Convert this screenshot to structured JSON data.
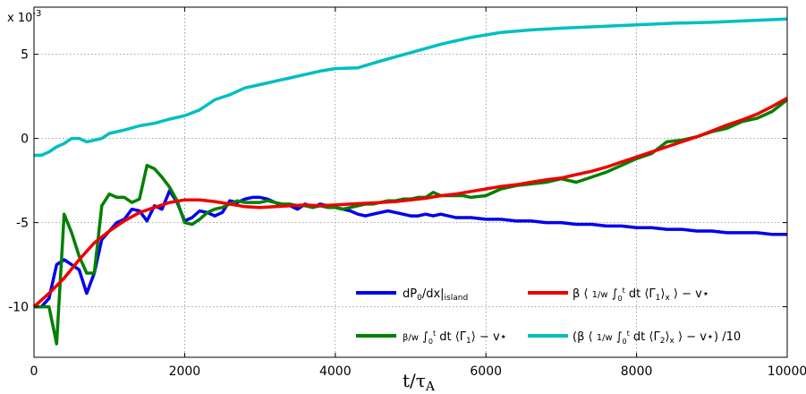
{
  "chart_data": {
    "type": "line",
    "xlabel": "t/τA",
    "y_scale_note": "x 10-3",
    "xlim": [
      0,
      10000
    ],
    "ylim": [
      -13,
      7.8
    ],
    "grid": true,
    "legend_placement": "bottom-right",
    "x_ticks": [
      0,
      2000,
      4000,
      6000,
      8000,
      10000
    ],
    "y_ticks": [
      -10,
      -5,
      0,
      5
    ],
    "series": [
      {
        "name": "dP0/dx|island",
        "color": "#0000ee",
        "points": [
          [
            0,
            -10
          ],
          [
            100,
            -10
          ],
          [
            200,
            -9.5
          ],
          [
            300,
            -7.5
          ],
          [
            400,
            -7.2
          ],
          [
            500,
            -7.5
          ],
          [
            600,
            -7.8
          ],
          [
            700,
            -9.2
          ],
          [
            800,
            -8
          ],
          [
            900,
            -6
          ],
          [
            1000,
            -5.5
          ],
          [
            1100,
            -5
          ],
          [
            1200,
            -4.8
          ],
          [
            1300,
            -4.2
          ],
          [
            1400,
            -4.3
          ],
          [
            1500,
            -4.9
          ],
          [
            1600,
            -4.0
          ],
          [
            1700,
            -4.2
          ],
          [
            1800,
            -3.1
          ],
          [
            1900,
            -3.8
          ],
          [
            2000,
            -4.9
          ],
          [
            2100,
            -4.7
          ],
          [
            2200,
            -4.3
          ],
          [
            2300,
            -4.4
          ],
          [
            2400,
            -4.6
          ],
          [
            2500,
            -4.4
          ],
          [
            2600,
            -3.7
          ],
          [
            2700,
            -3.8
          ],
          [
            2800,
            -3.6
          ],
          [
            2900,
            -3.5
          ],
          [
            3000,
            -3.5
          ],
          [
            3100,
            -3.6
          ],
          [
            3200,
            -3.8
          ],
          [
            3300,
            -4.0
          ],
          [
            3400,
            -4.0
          ],
          [
            3500,
            -4.2
          ],
          [
            3600,
            -3.9
          ],
          [
            3700,
            -4.1
          ],
          [
            3800,
            -3.9
          ],
          [
            3900,
            -4.0
          ],
          [
            4000,
            -4.1
          ],
          [
            4100,
            -4.2
          ],
          [
            4200,
            -4.3
          ],
          [
            4300,
            -4.5
          ],
          [
            4400,
            -4.6
          ],
          [
            4500,
            -4.5
          ],
          [
            4600,
            -4.4
          ],
          [
            4700,
            -4.3
          ],
          [
            4800,
            -4.4
          ],
          [
            4900,
            -4.5
          ],
          [
            5000,
            -4.6
          ],
          [
            5100,
            -4.6
          ],
          [
            5200,
            -4.5
          ],
          [
            5300,
            -4.6
          ],
          [
            5400,
            -4.5
          ],
          [
            5500,
            -4.6
          ],
          [
            5600,
            -4.7
          ],
          [
            5800,
            -4.7
          ],
          [
            6000,
            -4.8
          ],
          [
            6200,
            -4.8
          ],
          [
            6400,
            -4.9
          ],
          [
            6600,
            -4.9
          ],
          [
            6800,
            -5.0
          ],
          [
            7000,
            -5.0
          ],
          [
            7200,
            -5.1
          ],
          [
            7400,
            -5.1
          ],
          [
            7600,
            -5.2
          ],
          [
            7800,
            -5.2
          ],
          [
            8000,
            -5.3
          ],
          [
            8200,
            -5.3
          ],
          [
            8400,
            -5.4
          ],
          [
            8600,
            -5.4
          ],
          [
            8800,
            -5.5
          ],
          [
            9000,
            -5.5
          ],
          [
            9200,
            -5.6
          ],
          [
            9400,
            -5.6
          ],
          [
            9600,
            -5.6
          ],
          [
            9800,
            -5.7
          ],
          [
            10000,
            -5.7
          ]
        ]
      },
      {
        "name": "β/w ∫₀ᵗ dt ⟨Γ1⟩ − v⋆",
        "color": "#008000",
        "points": [
          [
            0,
            -10
          ],
          [
            100,
            -10
          ],
          [
            200,
            -10
          ],
          [
            300,
            -12.2
          ],
          [
            400,
            -4.5
          ],
          [
            500,
            -5.6
          ],
          [
            600,
            -7
          ],
          [
            700,
            -8
          ],
          [
            800,
            -8
          ],
          [
            900,
            -4
          ],
          [
            1000,
            -3.3
          ],
          [
            1100,
            -3.5
          ],
          [
            1200,
            -3.5
          ],
          [
            1300,
            -3.8
          ],
          [
            1400,
            -3.6
          ],
          [
            1500,
            -1.6
          ],
          [
            1600,
            -1.8
          ],
          [
            1700,
            -2.3
          ],
          [
            1800,
            -2.9
          ],
          [
            1900,
            -3.7
          ],
          [
            2000,
            -5.0
          ],
          [
            2100,
            -5.1
          ],
          [
            2200,
            -4.8
          ],
          [
            2300,
            -4.4
          ],
          [
            2400,
            -4.2
          ],
          [
            2500,
            -4.1
          ],
          [
            2600,
            -3.9
          ],
          [
            2700,
            -3.7
          ],
          [
            2800,
            -3.8
          ],
          [
            2900,
            -3.8
          ],
          [
            3000,
            -3.8
          ],
          [
            3100,
            -3.7
          ],
          [
            3200,
            -3.8
          ],
          [
            3300,
            -3.9
          ],
          [
            3400,
            -3.9
          ],
          [
            3500,
            -4.0
          ],
          [
            3600,
            -4.0
          ],
          [
            3700,
            -4.1
          ],
          [
            3800,
            -4.0
          ],
          [
            3900,
            -4.1
          ],
          [
            4000,
            -4.1
          ],
          [
            4100,
            -4.2
          ],
          [
            4200,
            -4.1
          ],
          [
            4300,
            -4.0
          ],
          [
            4400,
            -3.9
          ],
          [
            4500,
            -3.9
          ],
          [
            4600,
            -3.8
          ],
          [
            4700,
            -3.7
          ],
          [
            4800,
            -3.7
          ],
          [
            4900,
            -3.6
          ],
          [
            5000,
            -3.6
          ],
          [
            5100,
            -3.5
          ],
          [
            5200,
            -3.5
          ],
          [
            5300,
            -3.2
          ],
          [
            5400,
            -3.4
          ],
          [
            5500,
            -3.4
          ],
          [
            5600,
            -3.4
          ],
          [
            5700,
            -3.4
          ],
          [
            5800,
            -3.5
          ],
          [
            6000,
            -3.4
          ],
          [
            6200,
            -3.0
          ],
          [
            6400,
            -2.8
          ],
          [
            6600,
            -2.7
          ],
          [
            6800,
            -2.6
          ],
          [
            7000,
            -2.4
          ],
          [
            7200,
            -2.6
          ],
          [
            7400,
            -2.3
          ],
          [
            7600,
            -2.0
          ],
          [
            7800,
            -1.6
          ],
          [
            8000,
            -1.2
          ],
          [
            8200,
            -0.9
          ],
          [
            8400,
            -0.2
          ],
          [
            8600,
            -0.1
          ],
          [
            8800,
            0.1
          ],
          [
            9000,
            0.4
          ],
          [
            9200,
            0.6
          ],
          [
            9400,
            1.0
          ],
          [
            9600,
            1.2
          ],
          [
            9800,
            1.6
          ],
          [
            10000,
            2.3
          ]
        ]
      },
      {
        "name": "β ⟨1/w ∫₀ᵗ dt ⟨Γ1⟩x⟩ − v⋆",
        "color": "#ee0000",
        "points": [
          [
            0,
            -10
          ],
          [
            200,
            -9.2
          ],
          [
            400,
            -8.3
          ],
          [
            600,
            -7.2
          ],
          [
            800,
            -6.2
          ],
          [
            1000,
            -5.5
          ],
          [
            1200,
            -4.9
          ],
          [
            1400,
            -4.4
          ],
          [
            1600,
            -4.1
          ],
          [
            1800,
            -3.8
          ],
          [
            2000,
            -3.65
          ],
          [
            2200,
            -3.65
          ],
          [
            2400,
            -3.75
          ],
          [
            2600,
            -3.9
          ],
          [
            2800,
            -4.05
          ],
          [
            3000,
            -4.1
          ],
          [
            3200,
            -4.05
          ],
          [
            3400,
            -4.0
          ],
          [
            3600,
            -3.95
          ],
          [
            3800,
            -4.0
          ],
          [
            4000,
            -3.95
          ],
          [
            4200,
            -3.9
          ],
          [
            4400,
            -3.85
          ],
          [
            4600,
            -3.8
          ],
          [
            4800,
            -3.75
          ],
          [
            5000,
            -3.65
          ],
          [
            5200,
            -3.55
          ],
          [
            5400,
            -3.4
          ],
          [
            5600,
            -3.3
          ],
          [
            5800,
            -3.15
          ],
          [
            6000,
            -3.0
          ],
          [
            6200,
            -2.85
          ],
          [
            6400,
            -2.75
          ],
          [
            6600,
            -2.6
          ],
          [
            6800,
            -2.45
          ],
          [
            7000,
            -2.35
          ],
          [
            7200,
            -2.15
          ],
          [
            7400,
            -1.95
          ],
          [
            7600,
            -1.7
          ],
          [
            7800,
            -1.4
          ],
          [
            8000,
            -1.1
          ],
          [
            8200,
            -0.8
          ],
          [
            8400,
            -0.5
          ],
          [
            8600,
            -0.2
          ],
          [
            8800,
            0.1
          ],
          [
            9000,
            0.45
          ],
          [
            9200,
            0.8
          ],
          [
            9400,
            1.1
          ],
          [
            9600,
            1.45
          ],
          [
            9800,
            1.9
          ],
          [
            10000,
            2.4
          ]
        ]
      },
      {
        "name": "(β ⟨1/w ∫₀ᵗ dt ⟨Γ2⟩x⟩ − v⋆)/10",
        "color": "#00bfbf",
        "points": [
          [
            0,
            -1.0
          ],
          [
            100,
            -1.0
          ],
          [
            200,
            -0.8
          ],
          [
            300,
            -0.5
          ],
          [
            400,
            -0.3
          ],
          [
            500,
            0.0
          ],
          [
            600,
            0.0
          ],
          [
            700,
            -0.2
          ],
          [
            800,
            -0.1
          ],
          [
            900,
            0.0
          ],
          [
            1000,
            0.3
          ],
          [
            1200,
            0.5
          ],
          [
            1400,
            0.75
          ],
          [
            1600,
            0.9
          ],
          [
            1800,
            1.15
          ],
          [
            2000,
            1.35
          ],
          [
            2200,
            1.7
          ],
          [
            2400,
            2.3
          ],
          [
            2600,
            2.6
          ],
          [
            2800,
            3.0
          ],
          [
            3000,
            3.2
          ],
          [
            3200,
            3.4
          ],
          [
            3400,
            3.6
          ],
          [
            3600,
            3.8
          ],
          [
            3800,
            4.0
          ],
          [
            4000,
            4.15
          ],
          [
            4300,
            4.2
          ],
          [
            4600,
            4.6
          ],
          [
            5000,
            5.1
          ],
          [
            5400,
            5.6
          ],
          [
            5800,
            6.0
          ],
          [
            6200,
            6.3
          ],
          [
            6600,
            6.45
          ],
          [
            7000,
            6.55
          ],
          [
            7500,
            6.65
          ],
          [
            8000,
            6.75
          ],
          [
            8500,
            6.85
          ],
          [
            9000,
            6.9
          ],
          [
            9500,
            7.0
          ],
          [
            10000,
            7.1
          ]
        ]
      }
    ]
  }
}
